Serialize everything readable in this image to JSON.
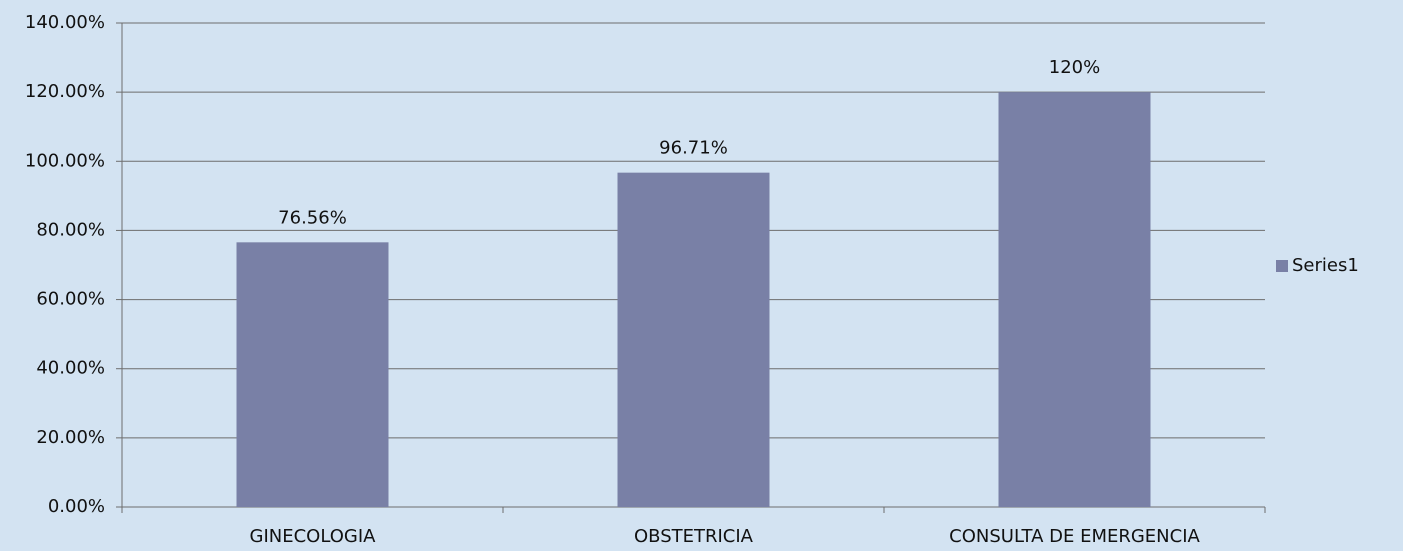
{
  "chart_data": {
    "type": "bar",
    "categories": [
      "GINECOLOGIA",
      "OBSTETRICIA",
      "CONSULTA DE EMERGENCIA"
    ],
    "series": [
      {
        "name": "Series1",
        "color": "#7980a6",
        "values": [
          76.56,
          96.71,
          120
        ],
        "value_labels": [
          "76.56%",
          "96.71%",
          "120%"
        ]
      }
    ],
    "ylim": [
      0,
      140
    ],
    "yticks": [
      {
        "value": 0,
        "label": "0.00%"
      },
      {
        "value": 20,
        "label": "20.00%"
      },
      {
        "value": 40,
        "label": "40.00%"
      },
      {
        "value": 60,
        "label": "60.00%"
      },
      {
        "value": 80,
        "label": "80.00%"
      },
      {
        "value": 100,
        "label": "100.00%"
      },
      {
        "value": 120,
        "label": "120.00%"
      },
      {
        "value": 140,
        "label": "140.00%"
      }
    ],
    "grid": true,
    "legend": "right"
  }
}
